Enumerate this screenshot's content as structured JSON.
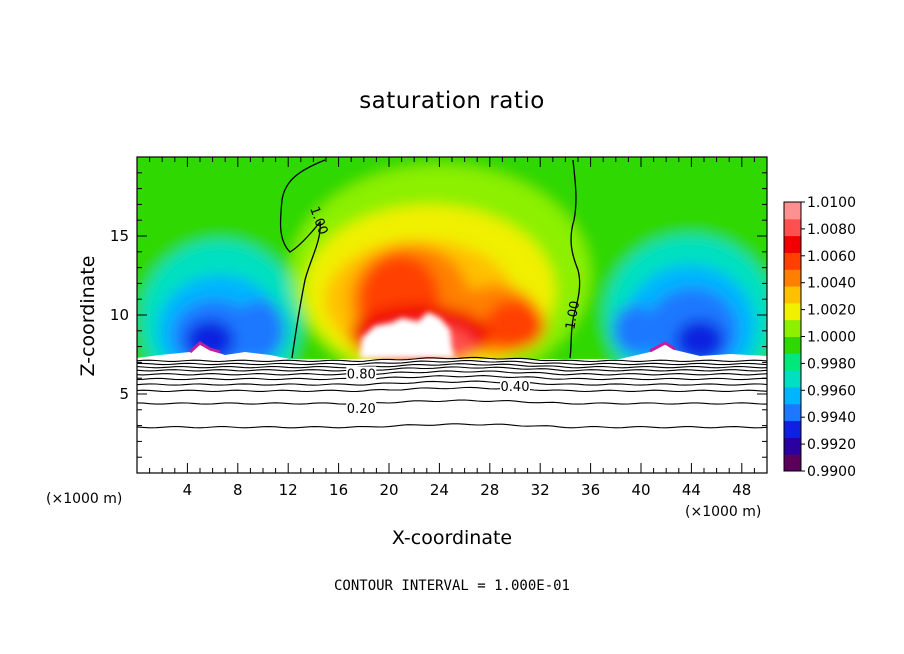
{
  "chart_data": {
    "type": "heatmap",
    "title": "saturation ratio",
    "xlabel": "X-coordinate",
    "ylabel": "Z-coordinate",
    "x_unit": "(×1000 m)",
    "footnote": "CONTOUR INTERVAL = 1.000E-01",
    "xlim": [
      0,
      50
    ],
    "ylim": [
      0,
      20
    ],
    "x_ticks": [
      4,
      8,
      12,
      16,
      20,
      24,
      28,
      32,
      36,
      40,
      44,
      48
    ],
    "y_ticks": [
      5,
      10,
      15
    ],
    "colorbar": {
      "min": 0.99,
      "max": 1.01,
      "labels": [
        "1.0100",
        "1.0080",
        "1.0060",
        "1.0040",
        "1.0020",
        "1.0000",
        "0.9980",
        "0.9960",
        "0.9940",
        "0.9920",
        "0.9900"
      ],
      "colors": [
        "#5a005a",
        "#2a00a0",
        "#1020e0",
        "#1e78ff",
        "#00b4ff",
        "#00e0c0",
        "#00e87a",
        "#2ed800",
        "#8cf000",
        "#f0f000",
        "#ffc000",
        "#ff8000",
        "#ff4000",
        "#f00000",
        "#ff5050",
        "#ff9090"
      ]
    },
    "contour_labels": [
      {
        "text": "1.00",
        "x": 14.5,
        "z": 16.0
      },
      {
        "text": "1.00",
        "x": 34.5,
        "z": 10.0
      },
      {
        "text": "0.80",
        "x": 17.8,
        "z": 6.3
      },
      {
        "text": "0.40",
        "x": 30.0,
        "z": 5.5
      },
      {
        "text": "0.20",
        "x": 17.8,
        "z": 4.1
      }
    ],
    "contours_below_cloud_base": [
      7.1,
      6.9,
      6.7,
      6.5,
      6.25,
      5.95,
      5.6,
      5.2,
      4.4,
      2.9
    ],
    "cloud_base_z": 7.2
  }
}
